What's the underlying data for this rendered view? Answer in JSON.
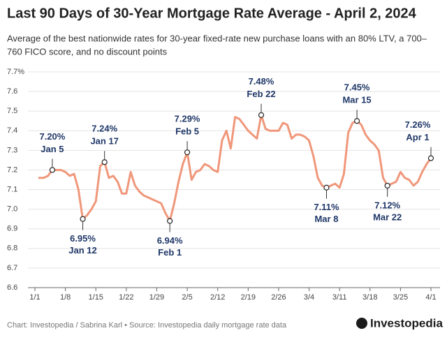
{
  "chart_data": {
    "type": "line",
    "title": "Last 90 Days of 30-Year Mortgage Rate Average - April 2, 2024",
    "subtitle": [
      "Average of the best nationwide rates for 30-year fixed-rate new purchase loans with an 80% LTV, a 700–",
      "760 FICO score, and no discount points"
    ],
    "footer": "Chart: Investopedia / Sabrina Karl • Source: Investopedia daily mortgage rate data",
    "logo": "Investopedia",
    "color": "#f0977a",
    "grid": true,
    "x": [
      1,
      2,
      3,
      4,
      5,
      6,
      7,
      8,
      9,
      10,
      11,
      12,
      13,
      14,
      15,
      16,
      17,
      18,
      19,
      20,
      21,
      22,
      23,
      24,
      25,
      26,
      27,
      28,
      29,
      30,
      31,
      32,
      33,
      34,
      35,
      36,
      37,
      38,
      39,
      40,
      41,
      42,
      43,
      44,
      45,
      46,
      47,
      48,
      49,
      50,
      51,
      52,
      53,
      54,
      55,
      56,
      57,
      58,
      59,
      60,
      61,
      62,
      63,
      64,
      65,
      66,
      67,
      68,
      69,
      70,
      71,
      72,
      73,
      74,
      75,
      76,
      77,
      78,
      79,
      80,
      81,
      82,
      83,
      84,
      85,
      86,
      87,
      88,
      89,
      90,
      91
    ],
    "values": [
      7.16,
      7.16,
      7.17,
      7.2,
      7.2,
      7.2,
      7.19,
      7.17,
      7.18,
      7.1,
      6.95,
      6.97,
      7.0,
      7.04,
      7.22,
      7.24,
      7.16,
      7.17,
      7.14,
      7.08,
      7.08,
      7.19,
      7.12,
      7.09,
      7.07,
      7.06,
      7.05,
      7.04,
      7.03,
      6.98,
      6.94,
      7.03,
      7.14,
      7.23,
      7.29,
      7.15,
      7.19,
      7.2,
      7.23,
      7.22,
      7.2,
      7.19,
      7.35,
      7.4,
      7.31,
      7.47,
      7.46,
      7.43,
      7.4,
      7.38,
      7.36,
      7.48,
      7.41,
      7.4,
      7.4,
      7.4,
      7.44,
      7.43,
      7.36,
      7.38,
      7.38,
      7.37,
      7.35,
      7.27,
      7.16,
      7.12,
      7.11,
      7.12,
      7.13,
      7.11,
      7.18,
      7.39,
      7.44,
      7.45,
      7.43,
      7.38,
      7.35,
      7.33,
      7.3,
      7.16,
      7.12,
      7.13,
      7.14,
      7.19,
      7.16,
      7.15,
      7.12,
      7.14,
      7.19,
      7.23,
      7.26
    ],
    "xlim": [
      0,
      91
    ],
    "xticks": [
      {
        "value": 0,
        "label": "1/1"
      },
      {
        "value": 7,
        "label": "1/8"
      },
      {
        "value": 14,
        "label": "1/15"
      },
      {
        "value": 21,
        "label": "1/22"
      },
      {
        "value": 28,
        "label": "1/29"
      },
      {
        "value": 35,
        "label": "2/5"
      },
      {
        "value": 42,
        "label": "2/12"
      },
      {
        "value": 49,
        "label": "2/19"
      },
      {
        "value": 56,
        "label": "2/26"
      },
      {
        "value": 63,
        "label": "3/4"
      },
      {
        "value": 70,
        "label": "3/11"
      },
      {
        "value": 77,
        "label": "3/18"
      },
      {
        "value": 84,
        "label": "3/25"
      },
      {
        "value": 91,
        "label": "4/1"
      }
    ],
    "ylim": [
      6.6,
      7.7
    ],
    "yticks": [
      6.6,
      6.7,
      6.8,
      6.9,
      {
        "value": 7,
        "label": "7.0"
      },
      7.1,
      7.2,
      7.3,
      7.4,
      7.5,
      7.6,
      {
        "value": 7.7,
        "label": "7.7%"
      }
    ],
    "annotations": [
      {
        "x": 4,
        "value": 7.2,
        "label": "7.20%",
        "date": "Jan 5",
        "side": "above"
      },
      {
        "x": 11,
        "value": 6.95,
        "label": "6.95%",
        "date": "Jan 12",
        "side": "below"
      },
      {
        "x": 16,
        "value": 7.24,
        "label": "7.24%",
        "date": "Jan 17",
        "side": "above"
      },
      {
        "x": 31,
        "value": 6.94,
        "label": "6.94%",
        "date": "Feb 1",
        "side": "below"
      },
      {
        "x": 35,
        "value": 7.29,
        "label": "7.29%",
        "date": "Feb 5",
        "side": "above"
      },
      {
        "x": 52,
        "value": 7.48,
        "label": "7.48%",
        "date": "Feb 22",
        "side": "above"
      },
      {
        "x": 67,
        "value": 7.11,
        "label": "7.11%",
        "date": "Mar 8",
        "side": "below"
      },
      {
        "x": 74,
        "value": 7.45,
        "label": "7.45%",
        "date": "Mar 15",
        "side": "above"
      },
      {
        "x": 81,
        "value": 7.12,
        "label": "7.12%",
        "date": "Mar 22",
        "side": "below"
      },
      {
        "x": 91,
        "value": 7.26,
        "label": "7.26%",
        "date": "Apr 1",
        "side": "above"
      }
    ]
  }
}
